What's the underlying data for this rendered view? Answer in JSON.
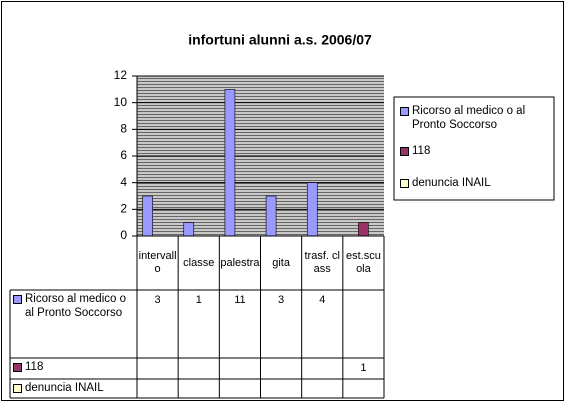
{
  "chart_data": {
    "type": "bar",
    "title": "infortuni alunni a.s. 2006/07",
    "categories": [
      "intervallo",
      "classe",
      "palestra",
      "gita",
      "trasf. class",
      "est.scuola"
    ],
    "series": [
      {
        "name": "Ricorso al medico o al Pronto Soccorso",
        "color": "#9999ff",
        "values": [
          3,
          1,
          11,
          3,
          4,
          null
        ]
      },
      {
        "name": "118",
        "color": "#993366",
        "values": [
          null,
          null,
          null,
          null,
          null,
          1
        ]
      },
      {
        "name": "denuncia INAIL",
        "color": "#ffffcc",
        "values": [
          null,
          null,
          null,
          null,
          null,
          null
        ]
      }
    ],
    "ylim": [
      0,
      12
    ],
    "yticks": [
      0,
      2,
      4,
      6,
      8,
      10,
      12
    ],
    "grid": true,
    "legend": "right",
    "data_table": true
  }
}
